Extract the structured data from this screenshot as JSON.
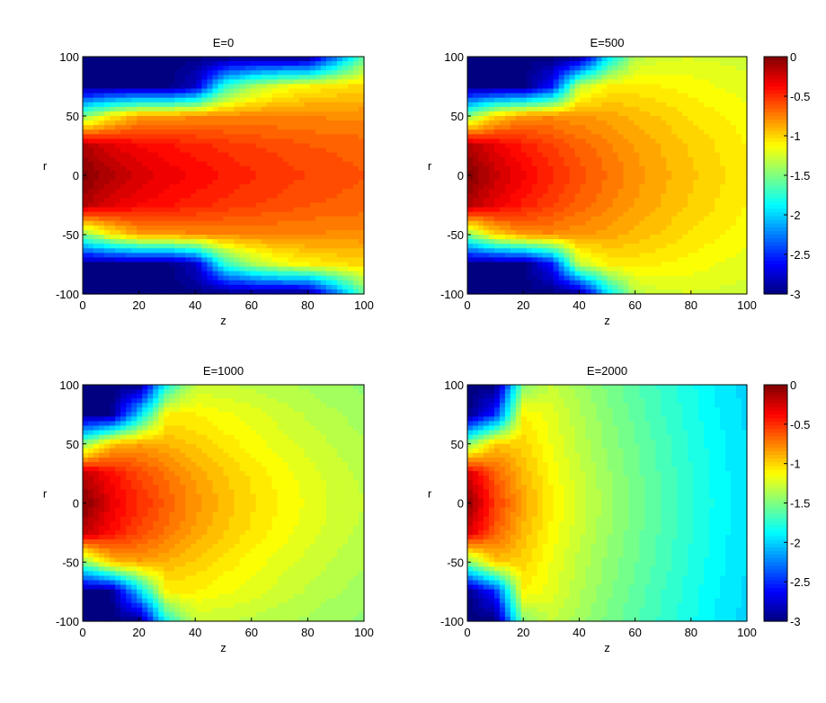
{
  "chart_data": [
    {
      "type": "heatmap",
      "title": "E=0",
      "xlabel": "z",
      "ylabel": "r",
      "xlim": [
        0,
        100
      ],
      "ylim": [
        -100,
        100
      ],
      "clim": [
        -3,
        0
      ],
      "colormap": "jet",
      "xticks": [
        "0",
        "20",
        "40",
        "60",
        "80",
        "100"
      ],
      "yticks": [
        "100",
        "50",
        "0",
        "-50",
        "-100"
      ],
      "colorbar": false,
      "z": [
        0,
        10,
        20,
        30,
        40,
        50,
        60,
        70,
        80,
        90,
        100
      ],
      "r": [
        100,
        75,
        50,
        25,
        0,
        -25,
        -50,
        -75,
        -100
      ],
      "values": [
        [
          -3,
          -3,
          -3,
          -3,
          -3,
          -3,
          -3,
          -3,
          -3,
          -2.3,
          -1.6
        ],
        [
          -3,
          -3,
          -3,
          -3,
          -2.8,
          -1.8,
          -1.4,
          -1.2,
          -1.1,
          -1.05,
          -1.0
        ],
        [
          -1.5,
          -1.1,
          -0.85,
          -0.82,
          -0.78,
          -0.77,
          -0.77,
          -0.77,
          -0.77,
          -0.78,
          -0.78
        ],
        [
          -0.15,
          -0.28,
          -0.37,
          -0.42,
          -0.47,
          -0.52,
          -0.56,
          -0.59,
          -0.63,
          -0.65,
          -0.67
        ],
        [
          0,
          -0.15,
          -0.25,
          -0.32,
          -0.38,
          -0.44,
          -0.49,
          -0.53,
          -0.57,
          -0.6,
          -0.63
        ],
        [
          -0.15,
          -0.28,
          -0.37,
          -0.42,
          -0.47,
          -0.52,
          -0.56,
          -0.59,
          -0.63,
          -0.65,
          -0.67
        ],
        [
          -1.5,
          -1.1,
          -0.85,
          -0.82,
          -0.78,
          -0.77,
          -0.77,
          -0.77,
          -0.77,
          -0.78,
          -0.78
        ],
        [
          -3,
          -3,
          -3,
          -3,
          -2.8,
          -1.8,
          -1.4,
          -1.2,
          -1.1,
          -1.05,
          -1.0
        ],
        [
          -3,
          -3,
          -3,
          -3,
          -3,
          -3,
          -3,
          -3,
          -3,
          -2.3,
          -1.6
        ]
      ]
    },
    {
      "type": "heatmap",
      "title": "E=500",
      "xlabel": "z",
      "ylabel": "r",
      "xlim": [
        0,
        100
      ],
      "ylim": [
        -100,
        100
      ],
      "clim": [
        -3,
        0
      ],
      "colormap": "jet",
      "xticks": [
        "0",
        "20",
        "40",
        "60",
        "80",
        "100"
      ],
      "yticks": [
        "100",
        "50",
        "0",
        "-50",
        "-100"
      ],
      "colorbar": true,
      "colorbar_ticks": [
        "0",
        "-0.5",
        "-1",
        "-1.5",
        "-2",
        "-2.5",
        "-3"
      ],
      "z": [
        0,
        10,
        20,
        30,
        40,
        50,
        60,
        70,
        80,
        90,
        100
      ],
      "r": [
        100,
        75,
        50,
        25,
        0,
        -25,
        -50,
        -75,
        -100
      ],
      "values": [
        [
          -3,
          -3,
          -3,
          -3,
          -3,
          -2.0,
          -1.35,
          -1.25,
          -1.24,
          -1.25,
          -1.27
        ],
        [
          -3,
          -3,
          -3,
          -2.6,
          -1.3,
          -1.1,
          -1.07,
          -1.1,
          -1.13,
          -1.17,
          -1.2
        ],
        [
          -1.5,
          -1.0,
          -0.8,
          -0.78,
          -0.82,
          -0.86,
          -0.92,
          -0.98,
          -1.04,
          -1.09,
          -1.14
        ],
        [
          -0.15,
          -0.32,
          -0.45,
          -0.56,
          -0.66,
          -0.75,
          -0.84,
          -0.91,
          -0.98,
          -1.04,
          -1.1
        ],
        [
          0,
          -0.2,
          -0.35,
          -0.48,
          -0.6,
          -0.7,
          -0.8,
          -0.88,
          -0.95,
          -1.02,
          -1.08
        ],
        [
          -0.15,
          -0.32,
          -0.45,
          -0.56,
          -0.66,
          -0.75,
          -0.84,
          -0.91,
          -0.98,
          -1.04,
          -1.1
        ],
        [
          -1.5,
          -1.0,
          -0.8,
          -0.78,
          -0.82,
          -0.86,
          -0.92,
          -0.98,
          -1.04,
          -1.09,
          -1.14
        ],
        [
          -3,
          -3,
          -3,
          -2.6,
          -1.3,
          -1.1,
          -1.07,
          -1.1,
          -1.13,
          -1.17,
          -1.2
        ],
        [
          -3,
          -3,
          -3,
          -3,
          -3,
          -2.0,
          -1.35,
          -1.25,
          -1.24,
          -1.25,
          -1.27
        ]
      ]
    },
    {
      "type": "heatmap",
      "title": "E=1000",
      "xlabel": "z",
      "ylabel": "r",
      "xlim": [
        0,
        100
      ],
      "ylim": [
        -100,
        100
      ],
      "clim": [
        -3,
        0
      ],
      "colormap": "jet",
      "xticks": [
        "0",
        "20",
        "40",
        "60",
        "80",
        "100"
      ],
      "yticks": [
        "100",
        "50",
        "0",
        "-50",
        "-100"
      ],
      "colorbar": false,
      "z": [
        0,
        10,
        20,
        30,
        40,
        50,
        60,
        70,
        80,
        90,
        100
      ],
      "r": [
        100,
        75,
        50,
        25,
        0,
        -25,
        -50,
        -75,
        -100
      ],
      "values": [
        [
          -3,
          -3,
          -3,
          -1.8,
          -1.3,
          -1.3,
          -1.32,
          -1.35,
          -1.38,
          -1.42,
          -1.45
        ],
        [
          -3,
          -3,
          -2.0,
          -1.1,
          -1.1,
          -1.15,
          -1.2,
          -1.26,
          -1.31,
          -1.36,
          -1.4
        ],
        [
          -1.5,
          -0.95,
          -0.85,
          -0.9,
          -0.98,
          -1.06,
          -1.13,
          -1.2,
          -1.26,
          -1.31,
          -1.36
        ],
        [
          -0.18,
          -0.4,
          -0.58,
          -0.72,
          -0.85,
          -0.96,
          -1.05,
          -1.13,
          -1.2,
          -1.27,
          -1.32
        ],
        [
          0,
          -0.3,
          -0.5,
          -0.65,
          -0.8,
          -0.92,
          -1.02,
          -1.1,
          -1.18,
          -1.25,
          -1.3
        ],
        [
          -0.18,
          -0.4,
          -0.58,
          -0.72,
          -0.85,
          -0.96,
          -1.05,
          -1.13,
          -1.2,
          -1.27,
          -1.32
        ],
        [
          -1.5,
          -0.95,
          -0.85,
          -0.9,
          -0.98,
          -1.06,
          -1.13,
          -1.2,
          -1.26,
          -1.31,
          -1.36
        ],
        [
          -3,
          -3,
          -2.0,
          -1.1,
          -1.1,
          -1.15,
          -1.2,
          -1.26,
          -1.31,
          -1.36,
          -1.4
        ],
        [
          -3,
          -3,
          -3,
          -1.8,
          -1.3,
          -1.3,
          -1.32,
          -1.35,
          -1.38,
          -1.42,
          -1.45
        ]
      ]
    },
    {
      "type": "heatmap",
      "title": "E=2000",
      "xlabel": "z",
      "ylabel": "r",
      "xlim": [
        0,
        100
      ],
      "ylim": [
        -100,
        100
      ],
      "clim": [
        -3,
        0
      ],
      "colormap": "jet",
      "xticks": [
        "0",
        "20",
        "40",
        "60",
        "80",
        "100"
      ],
      "yticks": [
        "100",
        "50",
        "0",
        "-50",
        "-100"
      ],
      "colorbar": true,
      "colorbar_ticks": [
        "0",
        "-0.5",
        "-1",
        "-1.5",
        "-2",
        "-2.5",
        "-3"
      ],
      "z": [
        0,
        10,
        20,
        30,
        40,
        50,
        60,
        70,
        80,
        90,
        100
      ],
      "r": [
        100,
        75,
        50,
        25,
        0,
        -25,
        -50,
        -75,
        -100
      ],
      "values": [
        [
          -3,
          -3,
          -1.5,
          -1.3,
          -1.4,
          -1.52,
          -1.62,
          -1.72,
          -1.82,
          -1.92,
          -2.0
        ],
        [
          -3,
          -2.5,
          -1.1,
          -1.2,
          -1.35,
          -1.48,
          -1.59,
          -1.7,
          -1.8,
          -1.9,
          -1.98
        ],
        [
          -1.5,
          -0.95,
          -1.0,
          -1.17,
          -1.32,
          -1.45,
          -1.56,
          -1.67,
          -1.78,
          -1.88,
          -1.97
        ],
        [
          -0.25,
          -0.65,
          -0.92,
          -1.12,
          -1.28,
          -1.42,
          -1.54,
          -1.65,
          -1.76,
          -1.87,
          -1.96
        ],
        [
          0,
          -0.55,
          -0.85,
          -1.08,
          -1.25,
          -1.4,
          -1.52,
          -1.64,
          -1.75,
          -1.86,
          -1.95
        ],
        [
          -0.25,
          -0.65,
          -0.92,
          -1.12,
          -1.28,
          -1.42,
          -1.54,
          -1.65,
          -1.76,
          -1.87,
          -1.96
        ],
        [
          -1.5,
          -0.95,
          -1.0,
          -1.17,
          -1.32,
          -1.45,
          -1.56,
          -1.67,
          -1.78,
          -1.88,
          -1.97
        ],
        [
          -3,
          -2.5,
          -1.1,
          -1.2,
          -1.35,
          -1.48,
          -1.59,
          -1.7,
          -1.8,
          -1.9,
          -1.98
        ],
        [
          -3,
          -3,
          -1.5,
          -1.3,
          -1.4,
          -1.52,
          -1.62,
          -1.72,
          -1.82,
          -1.92,
          -2.0
        ]
      ]
    }
  ]
}
